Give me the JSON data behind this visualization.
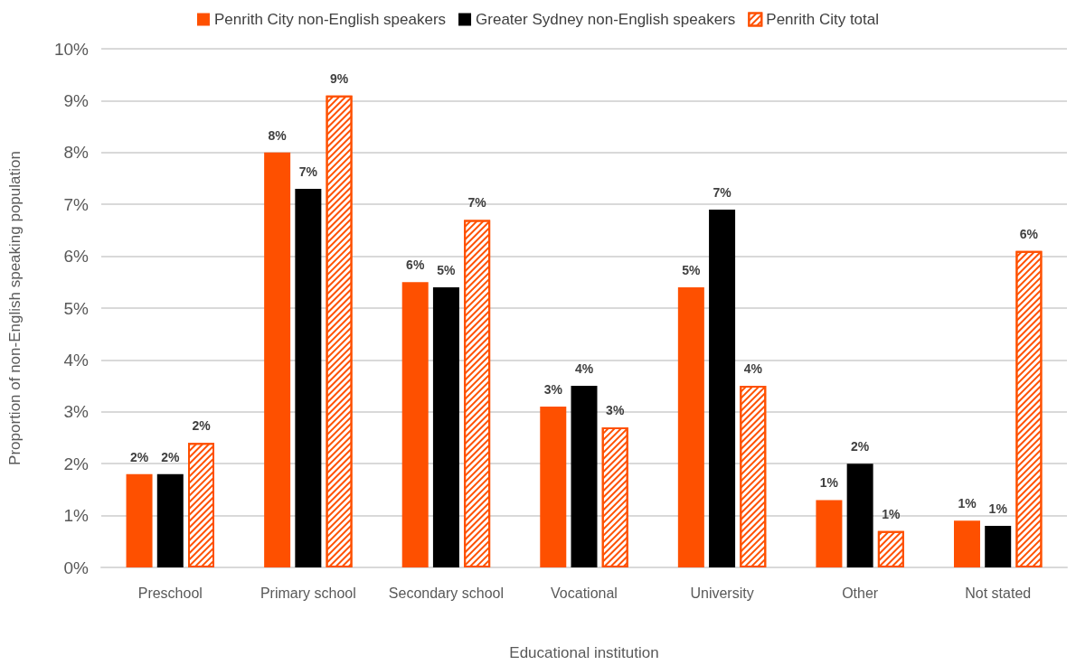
{
  "chart_data": {
    "type": "bar",
    "xlabel": "Educational institution",
    "ylabel": "Proportion of non-English speaking population",
    "categories": [
      "Preschool",
      "Primary school",
      "Secondary school",
      "Vocational",
      "University",
      "Other",
      "Not stated"
    ],
    "series": [
      {
        "name": "Penrith City non-English speakers",
        "color": "#fe5000",
        "values": [
          1.8,
          8.0,
          5.5,
          3.1,
          5.4,
          1.3,
          0.9
        ],
        "value_labels": [
          "2%",
          "8%",
          "6%",
          "3%",
          "5%",
          "1%",
          "1%"
        ]
      },
      {
        "name": "Greater Sydney non-English speakers",
        "color": "#000000",
        "values": [
          1.8,
          7.3,
          5.4,
          3.5,
          6.9,
          2.0,
          0.8
        ],
        "value_labels": [
          "2%",
          "7%",
          "5%",
          "4%",
          "7%",
          "2%",
          "1%"
        ]
      },
      {
        "name": "Penrith City total",
        "color": "#fe5000",
        "values": [
          2.4,
          9.1,
          6.7,
          2.7,
          3.5,
          0.7,
          6.1
        ],
        "value_labels": [
          "2%",
          "9%",
          "7%",
          "3%",
          "4%",
          "1%",
          "6%"
        ]
      }
    ],
    "ylim": [
      0,
      10
    ],
    "yticks": [
      {
        "value": 0,
        "label": "0%"
      },
      {
        "value": 1,
        "label": "1%"
      },
      {
        "value": 2,
        "label": "2%"
      },
      {
        "value": 3,
        "label": "3%"
      },
      {
        "value": 4,
        "label": "4%"
      },
      {
        "value": 5,
        "label": "5%"
      },
      {
        "value": 6,
        "label": "6%"
      },
      {
        "value": 7,
        "label": "7%"
      },
      {
        "value": 8,
        "label": "8%"
      },
      {
        "value": 9,
        "label": "9%"
      },
      {
        "value": 10,
        "label": "10%"
      }
    ],
    "grid": "y",
    "legend": "top"
  }
}
